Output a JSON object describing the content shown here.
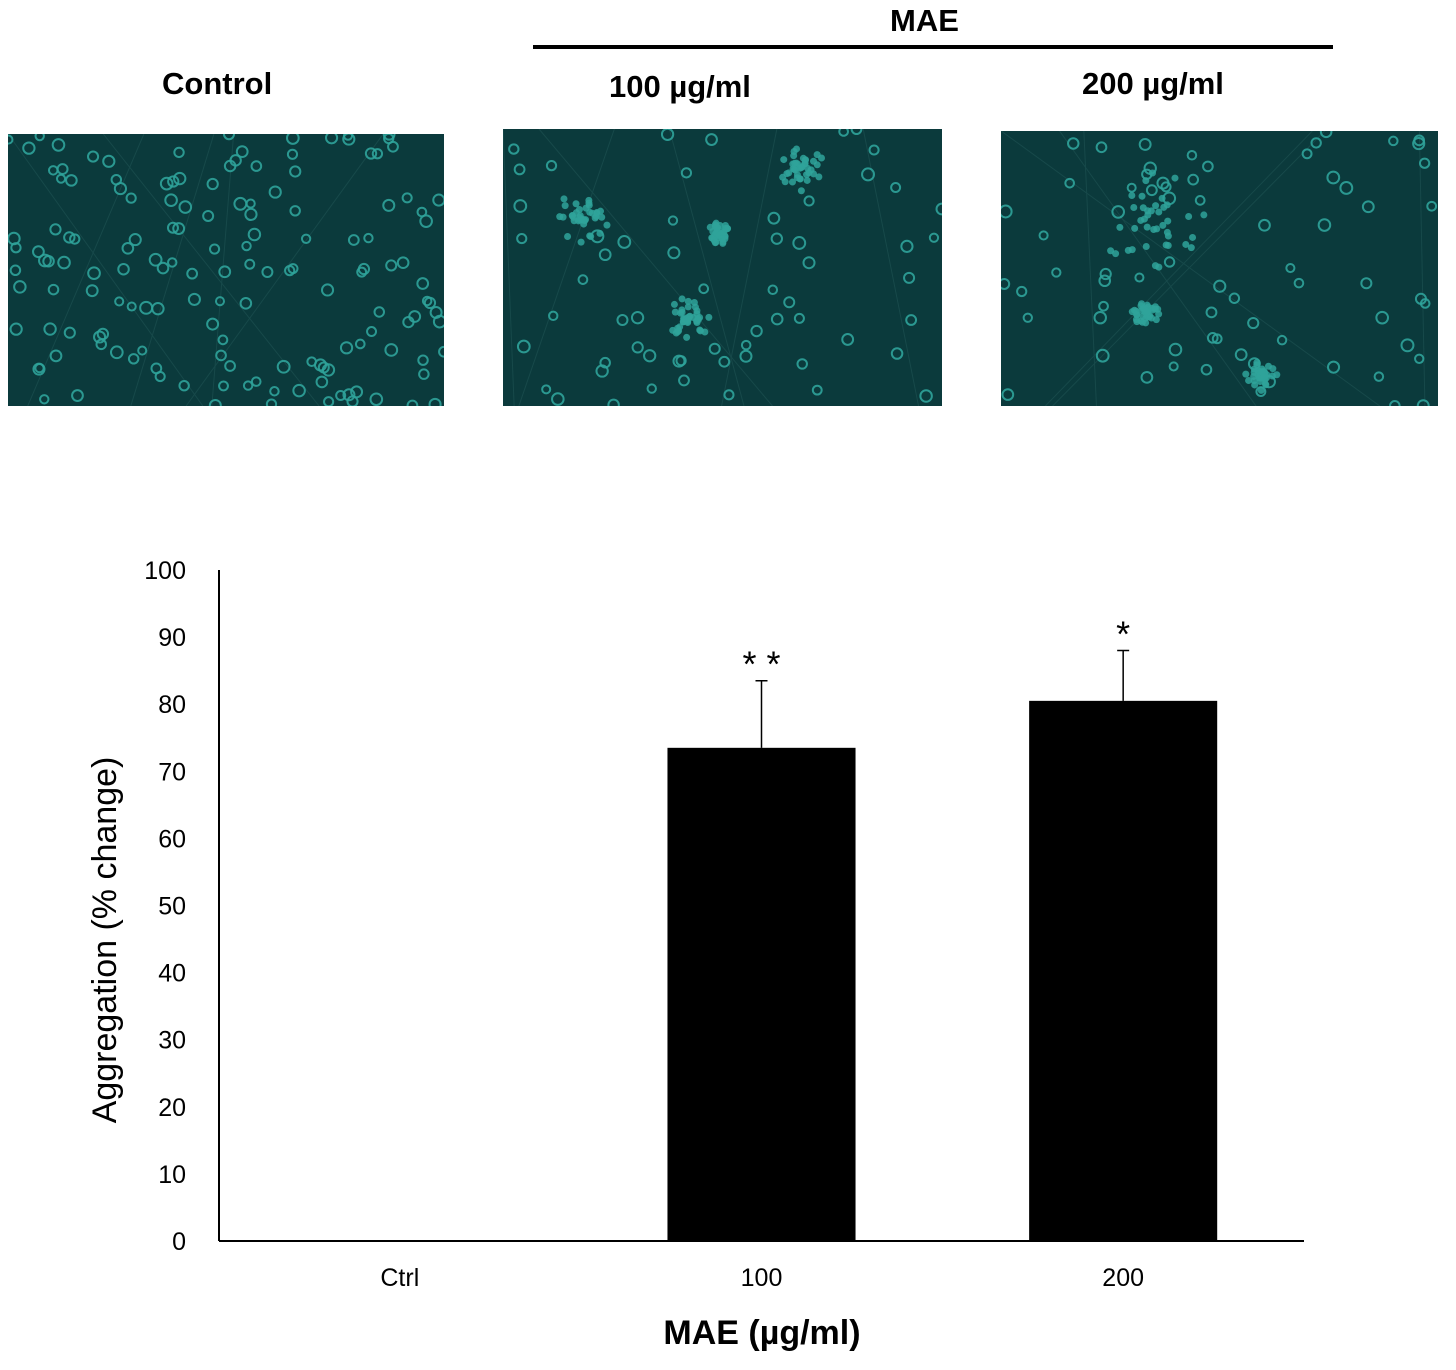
{
  "figure": {
    "group_label": "MAE",
    "panels": [
      {
        "id": "control",
        "label": "Control",
        "icon": "cell-micrograph-dispersed"
      },
      {
        "id": "mae100",
        "label": "100 µg/ml",
        "icon": "cell-micrograph-aggregated"
      },
      {
        "id": "mae200",
        "label": "200 µg/ml",
        "icon": "cell-micrograph-aggregated"
      }
    ],
    "micrograph_color": "#0b3a3c",
    "cell_color": "#2fa39a"
  },
  "chart_data": {
    "type": "bar",
    "categories": [
      "Ctrl",
      "100",
      "200"
    ],
    "values": [
      0,
      73.5,
      80.5
    ],
    "errors": [
      0,
      10,
      7.5
    ],
    "significance": [
      "",
      "* *",
      "*"
    ],
    "xlabel": "MAE (µg/ml)",
    "ylabel": "Aggregation (% change)",
    "ylim": [
      0,
      100
    ],
    "yticks": [
      0,
      10,
      20,
      30,
      40,
      50,
      60,
      70,
      80,
      90,
      100
    ],
    "bar_color": "#000000",
    "grid": false,
    "legend": false
  }
}
